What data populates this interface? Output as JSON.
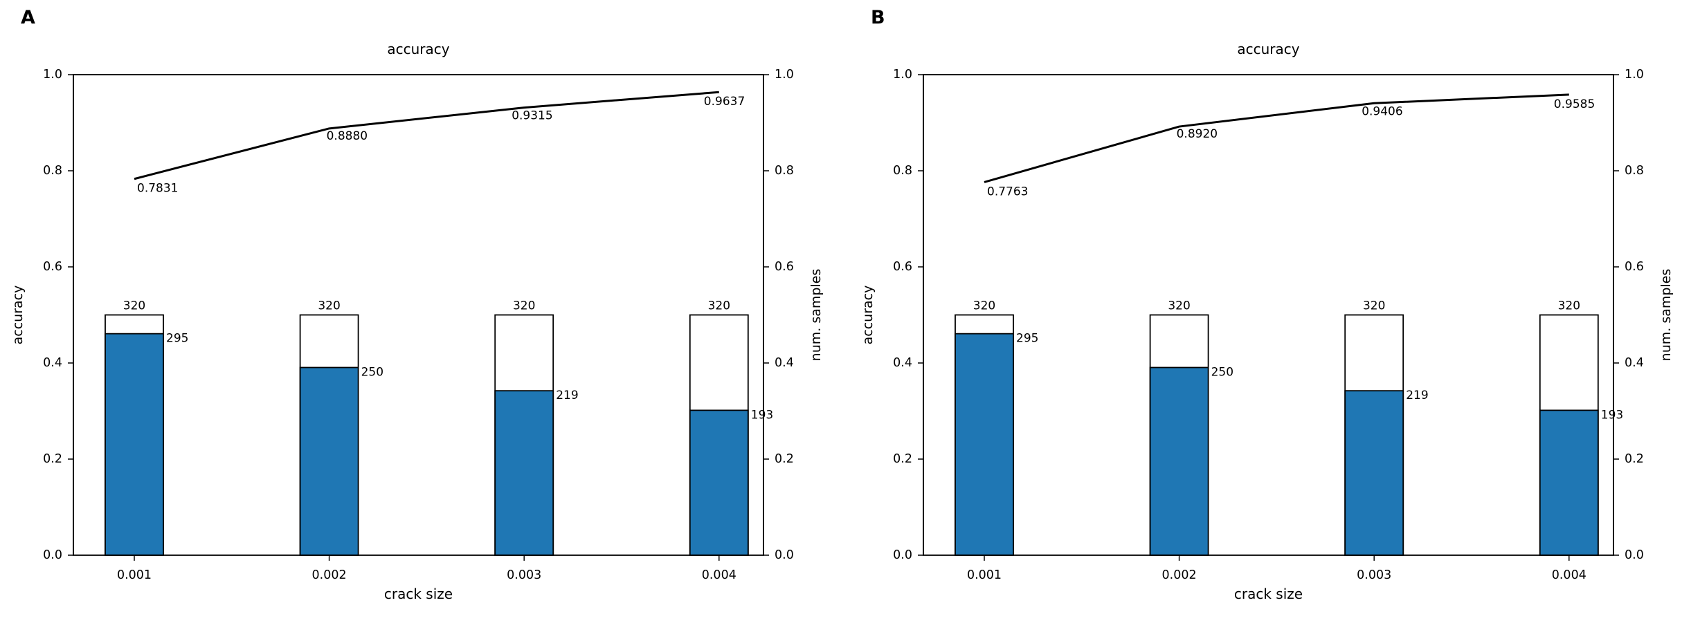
{
  "style": {
    "background": "#ffffff",
    "bar_fill": "#1f77b4",
    "bar_edge": "#000000",
    "line_color": "#000000",
    "text_color": "#000000"
  },
  "chart_data": [
    {
      "panel": "A",
      "type": "line+bar",
      "title": "accuracy",
      "xlabel": "crack size",
      "ylabel_left": "accuracy",
      "ylabel_right": "num. samples",
      "categories": [
        "0.001",
        "0.002",
        "0.003",
        "0.004"
      ],
      "yticks": [
        "0.0",
        "0.2",
        "0.4",
        "0.6",
        "0.8",
        "1.0"
      ],
      "ylim": [
        0,
        1
      ],
      "grid": false,
      "legend": "none",
      "accuracy_line": {
        "name": "accuracy",
        "values": [
          0.7831,
          0.888,
          0.9315,
          0.9637
        ],
        "labels": [
          "0.7831",
          "0.8880",
          "0.9315",
          "0.9637"
        ]
      },
      "bars_total": {
        "name": "num. samples total",
        "values": [
          320,
          320,
          320,
          320
        ],
        "labels": [
          "320",
          "320",
          "320",
          "320"
        ]
      },
      "bars_correct": {
        "name": "num. samples correct",
        "values": [
          295,
          250,
          219,
          193
        ],
        "labels": [
          "295",
          "250",
          "219",
          "193"
        ]
      },
      "samples_axis_max": 640
    },
    {
      "panel": "B",
      "type": "line+bar",
      "title": "accuracy",
      "xlabel": "crack size",
      "ylabel_left": "accuracy",
      "ylabel_right": "num. samples",
      "categories": [
        "0.001",
        "0.002",
        "0.003",
        "0.004"
      ],
      "yticks": [
        "0.0",
        "0.2",
        "0.4",
        "0.6",
        "0.8",
        "1.0"
      ],
      "ylim": [
        0,
        1
      ],
      "grid": false,
      "legend": "none",
      "accuracy_line": {
        "name": "accuracy",
        "values": [
          0.7763,
          0.892,
          0.9406,
          0.9585
        ],
        "labels": [
          "0.7763",
          "0.8920",
          "0.9406",
          "0.9585"
        ]
      },
      "bars_total": {
        "name": "num. samples total",
        "values": [
          320,
          320,
          320,
          320
        ],
        "labels": [
          "320",
          "320",
          "320",
          "320"
        ]
      },
      "bars_correct": {
        "name": "num. samples correct",
        "values": [
          295,
          250,
          219,
          193
        ],
        "labels": [
          "295",
          "250",
          "219",
          "193"
        ]
      },
      "samples_axis_max": 640
    }
  ]
}
